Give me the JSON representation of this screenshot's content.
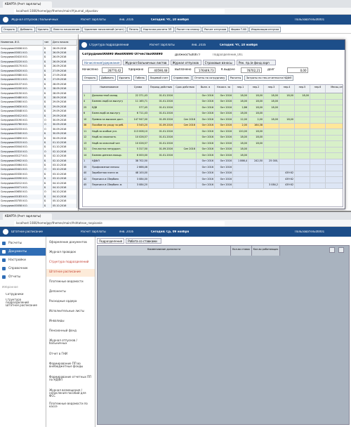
{
  "window1": {
    "tab": "КВАРТА (Учет зарплаты)",
    "url": "localhost:1080/home/gqr/themes/main/#journal_otpuskov",
    "app_title": "Журнал отпусков / больничных",
    "module": "Расчет зарплаты",
    "period": "янв. 2016",
    "today": "Сегодня: Чт, 10 ноября",
    "user": "Пользователь00001",
    "toolbar": [
      "Открыть",
      "Добавить",
      "Удалить",
      "Внести начисление",
      "Удаление начислений (отчет)",
      "Печать",
      "Карточка расчета ЗП",
      "Расчет по списку",
      "Расчет отпусков",
      "Форма Т-60",
      "Индексация отпуска"
    ],
    "list": {
      "columns": [
        "Наименов. И.О.",
        "тип",
        "Дата начала"
      ],
      "rows": [
        [
          "Сотрудник00006 И.О.",
          "Б",
          "26.09.2016"
        ],
        [
          "Сотрудник00001 И.О.",
          "Б",
          "26.09.2016"
        ],
        [
          "Сотрудник00410 И.О.",
          "Б",
          "26.09.2016"
        ],
        [
          "Сотрудник00220 И.О.",
          "Б",
          "26.09.2016"
        ],
        [
          "Сотрудник00170 И.О.",
          "Б",
          "26.09.2016"
        ],
        [
          "Сотрудник00020 И.О.",
          "Б",
          "27.09.2016"
        ],
        [
          "Сотрудник00580 И.О.",
          "Б",
          "27.09.2016"
        ],
        [
          "Сотрудник00311 И.О.",
          "Б",
          "27.09.2016"
        ],
        [
          "Сотрудник00137 И.О.",
          "Б",
          "28.09.2016"
        ],
        [
          "Сотрудник00200 И.О.",
          "Б",
          "28.09.2016"
        ],
        [
          "Сотрудник00150 И.О.",
          "Б",
          "28.09.2016"
        ],
        [
          "Сотрудник00480 И.О.",
          "Б",
          "28.09.2016"
        ],
        [
          "Сотрудник00560 И.О.",
          "Б",
          "29.09.2016"
        ],
        [
          "Сотрудник00630 И.О.",
          "Б",
          "29.09.2016"
        ],
        [
          "Сотрудник00048 И.О.",
          "Б",
          "29.09.2016"
        ],
        [
          "Сотрудник00412 И.О.",
          "Б",
          "29.09.2016"
        ],
        [
          "Сотрудник00190 И.О.",
          "О",
          "30.09.2016"
        ],
        [
          "Сотрудник00760 И.О.",
          "О",
          "30.09.2016"
        ],
        [
          "Сотрудник00233 И.О.",
          "О",
          "30.09.2016"
        ],
        [
          "Сотрудник00340 И.О.",
          "Б",
          "30.09.2016"
        ],
        [
          "Сотрудник00890 И.О.",
          "Б",
          "30.09.2016"
        ],
        [
          "Сотрудник00515 И.О.",
          "Б",
          "01.10.2016"
        ],
        [
          "Сотрудник00044 И.О.",
          "Б",
          "01.10.2016"
        ],
        [
          "Сотрудник00310 И.О.",
          "О",
          "02.10.2016"
        ],
        [
          "Сотрудник00127 И.О.",
          "Б",
          "02.10.2016"
        ],
        [
          "Сотрудник00902 И.О.",
          "Б",
          "02.10.2016"
        ],
        [
          "Сотрудник00064 И.О.",
          "Б",
          "03.10.2016"
        ],
        [
          "Сотрудник00441 И.О.",
          "О",
          "03.10.2016"
        ],
        [
          "Сотрудник00330 И.О.",
          "Б",
          "03.10.2016"
        ],
        [
          "Сотрудник00590 И.О.",
          "Б",
          "03.10.2016"
        ],
        [
          "Сотрудник00212 И.О.",
          "Б",
          "04.10.2016"
        ],
        [
          "Сотрудник00071 И.О.",
          "Б",
          "04.10.2016"
        ],
        [
          "Сотрудник00650 И.О.",
          "О",
          "04.10.2016"
        ],
        [
          "Сотрудник00183 И.О.",
          "Б",
          "04.10.2016"
        ],
        [
          "Сотрудник00705 И.О.",
          "Б",
          "05.10.2016"
        ],
        [
          "Сотрудник00058 И.О.",
          "Б",
          "05.10.2016"
        ]
      ]
    }
  },
  "dialog": {
    "title": "Структура подразделений",
    "module": "Расчет зарплаты",
    "period": "янв. 2016",
    "today": "Сегодня: Чт, 10 ноября",
    "employee": "Сотрудник00890 Имя00890 Отчество00890",
    "position": "Должность00077",
    "department": "Подразделение_001",
    "tabs": [
      "Начисления/удержания",
      "Журнал больничных листов",
      "Журнал отпусков",
      "Страховые взносы",
      "Рек. пр./и фонд.зарп"
    ],
    "summary": [
      {
        "label": "Начислено",
        "value": "28770,42"
      },
      {
        "label": "Удержано",
        "value": "40590,48"
      },
      {
        "label": "Выплачено",
        "value": "176449,73"
      },
      {
        "label": "К выдаче",
        "value": "78702,21"
      },
      {
        "label": "Долг",
        "value": "0,00"
      }
    ],
    "buttons": [
      "Открыть",
      "Добавить",
      "Удалить",
      "Табель",
      "Лицевой счет",
      "Справочник",
      "Отчеты по сотруднику",
      "Расчеты",
      "Затраты по тек.отчетности НДФЛ"
    ],
    "columns": [
      "Наименование",
      "Сумма",
      "Период действия",
      "Срок действия",
      "Выпл. в",
      "Начисл. за",
      "пер.1",
      "пер.2",
      "пер.3",
      "пер.4",
      "пер.5",
      "пер.6",
      "Месяц отп"
    ],
    "rows": [
      {
        "kind": "accrual",
        "cells": [
          1,
          "Должностной оклад",
          "22 371,43",
          "01.01.2016",
          null,
          "Окт 2016",
          "Окт 2016",
          "18,00",
          "18,00",
          "18,00",
          "18,00",
          "18,00",
          null,
          null
        ]
      },
      {
        "kind": "accrual",
        "cells": [
          4,
          "Ежемес.надб.за выслугу",
          "11 165,71",
          "01.01.2016",
          null,
          "Окт 2016",
          "Окт 2016",
          "18,00",
          "18,00",
          "18,00",
          null,
          null,
          null,
          null
        ]
      },
      {
        "kind": "accrual",
        "cells": [
          25,
          "ЕДВ",
          "577,45",
          "01.01.2016",
          null,
          "Окт 2016",
          "Окт 2016",
          "2,86",
          "18,00",
          "18,00",
          null,
          null,
          null,
          null
        ]
      },
      {
        "kind": "accrual",
        "cells": [
          6,
          "Ежем.надб.за выслугу",
          "6 711,43",
          "01.01.2016",
          null,
          "Окт 2016",
          "Окт 2016",
          "18,00",
          "18,00",
          null,
          null,
          null,
          null,
          null
        ]
      },
      {
        "kind": "accrual",
        "cells": [
          10,
          "Премия за высокие дост.",
          "147 947,00",
          "01.09.2016",
          "Сен 2016",
          "Окт 2016",
          "Окт 2016",
          "12,00",
          "2,00",
          "18,00",
          "18,00",
          null,
          null,
          null
        ]
      },
      {
        "kind": "selected",
        "cells": [
          38,
          "Пособие по уходу за реб.",
          "3 545,20",
          "01.09.2016",
          "Сен 2016",
          "Окт 2016",
          "Окт 2016",
          "2,00",
          "164,38",
          null,
          null,
          null,
          null,
          null
        ]
      },
      {
        "kind": "accrual",
        "cells": [
          11,
          "Надб.за особые усл.",
          "113 008,10",
          "01.01.2016",
          null,
          "Окт 2016",
          "Окт 2016",
          "120,00",
          "18,00",
          null,
          null,
          null,
          null,
          null
        ]
      },
      {
        "kind": "accrual",
        "cells": [
          12,
          "Надб.за сложность",
          "10 026,57",
          "01.01.2016",
          null,
          "Окт 2016",
          "Окт 2016",
          "18,00",
          "18,00",
          null,
          null,
          null,
          null,
          null
        ]
      },
      {
        "kind": "accrual",
        "cells": [
          13,
          "Надб.за классный чин",
          "10 026,57",
          "01.01.2016",
          null,
          "Окт 2016",
          "Окт 2016",
          "18,00",
          "18,00",
          null,
          null,
          null,
          null,
          null
        ]
      },
      {
        "kind": "accrual",
        "cells": [
          31,
          "Опл.листка нетрудосп.",
          "5 317,50",
          "01.09.2016",
          "Сен 2016",
          "Окт 2016",
          "Окт 2016",
          "18,00",
          null,
          null,
          null,
          null,
          null,
          null
        ]
      },
      {
        "kind": "accrual",
        "cells": [
          14,
          "Ежемес.денежн.поощр.",
          "6 000,00",
          "01.01.2016",
          null,
          "Окт 2016",
          "Окт 2016",
          "18,00",
          null,
          null,
          null,
          null,
          null,
          null
        ]
      },
      {
        "kind": "deduction",
        "cells": [
          1,
          "НДФЛ",
          "38 702,50",
          null,
          null,
          "Окт 2016",
          "Окт 2016",
          "1 866,4",
          "242,50",
          "25 000,",
          null,
          null,
          null,
          null
        ]
      },
      {
        "kind": "deduction",
        "cells": [
          35,
          "Профсоюзные взносы",
          "2 666,46",
          null,
          null,
          "Окт 2016",
          "Окт 2016",
          null,
          null,
          null,
          null,
          null,
          null,
          null
        ]
      },
      {
        "kind": "deduction",
        "cells": [
          40,
          "Заработная плата за",
          "48 100,00",
          null,
          null,
          "Окт 2016",
          "Окт 2016",
          null,
          null,
          null,
          "439 62",
          null,
          null,
          null
        ]
      },
      {
        "kind": "deduction",
        "cells": [
          42,
          "Перечисл.в Сбербанк",
          "3 084,00",
          null,
          null,
          "Окт 2016",
          "Окт 2016",
          null,
          null,
          null,
          "439 62",
          null,
          null,
          null
        ]
      },
      {
        "kind": "deduction",
        "cells": [
          45,
          "Перечисл.в Сбербанк ж",
          "3 084,20",
          null,
          null,
          "Окт 2016",
          "Окт 2016",
          null,
          null,
          "3 084,2",
          "439 62",
          null,
          null,
          null
        ]
      }
    ]
  },
  "window2": {
    "tab": "КВАРТА (Учет зарплаты)",
    "url": "localhost:1080/home/gqr/themes/main/#shtatnoe_raspisanie",
    "app_title": "Штатное расписание",
    "module": "Расчет зарплаты",
    "period": "янв. 2016",
    "today": "Сегодня: Ср, 09 ноября",
    "user": "Пользователь00001",
    "sidebar": [
      "Расчеты",
      "Документы",
      "Настройки",
      "Справочник",
      "Отчеты"
    ],
    "sidebar_active": 1,
    "favorites_title": "Избранное",
    "favorites": [
      "Сотрудники",
      "Структура подразделений",
      "Штатное расписание"
    ],
    "submenu": [
      "Оформление документов",
      "Журнал проводок",
      "Структура подразделений",
      "Штатное расписание",
      "Платежные ведомости",
      "Депоненты",
      "Расходные ордера",
      "Исполнительные листы",
      "Инвалиды",
      "Пенсионный фонд",
      "Журнал отпусков / больничных",
      "Отчет в ГНИ",
      "Формирование ПП во внебюджетные фонды",
      "Формирование отчетных ПП по НДФЛ",
      "Журнал возмещения / начисления пособий для ФСС",
      "Платежные ведомости по кассе"
    ],
    "submenu_active": 3,
    "tabs": [
      "Подразделения",
      "Работа со ставками"
    ],
    "columns": [
      "Наименование должности",
      "Кол-во ставок",
      "Кол-во работающих"
    ]
  }
}
